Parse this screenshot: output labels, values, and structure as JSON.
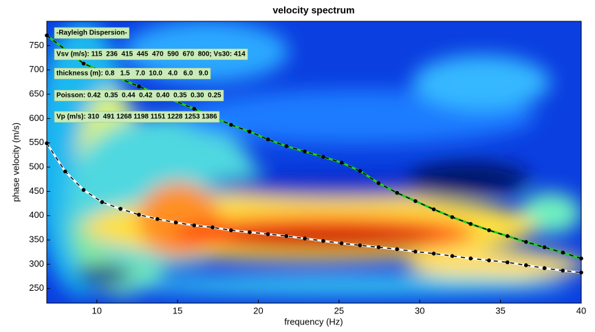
{
  "chart_data": {
    "type": "line",
    "title": "velocity spectrum",
    "xlabel": "frequency (Hz)",
    "ylabel": "phase velocity (m/s)",
    "xlim": [
      6.9,
      40
    ],
    "ylim": [
      220,
      800
    ],
    "xticks": [
      10,
      15,
      20,
      25,
      30,
      35,
      40
    ],
    "yticks": [
      250,
      300,
      350,
      400,
      450,
      500,
      550,
      600,
      650,
      700,
      750
    ],
    "grid": false,
    "dash_color": "#000000",
    "annotations": [
      "-Rayleigh Dispersion-",
      "Vsv (m/s): 115  236  415  445  470  590  670  800; Vs30: 414",
      "thickness (m): 0.8   1.5   7.0  10.0   4.0   6.0   9.0",
      "Poisson: 0.42  0.35  0.44  0.42  0.40  0.35  0.30  0.25",
      "Vp (m/s): 310  491 1268 1198 1151 1228 1253 1386"
    ],
    "series": [
      {
        "color": "#ffffff",
        "x": [
          6.9,
          8.04,
          9.18,
          10.32,
          11.47,
          12.61,
          13.75,
          14.89,
          16.03,
          17.17,
          18.31,
          19.46,
          20.6,
          21.74,
          22.88,
          24.02,
          25.16,
          26.3,
          27.45,
          28.59,
          29.73,
          30.87,
          32.01,
          33.15,
          34.29,
          35.43,
          36.58,
          37.72,
          38.86,
          40.0
        ],
        "values": [
          549,
          491,
          453,
          428,
          414,
          402,
          393,
          386,
          380,
          376,
          370,
          366,
          362,
          358,
          353,
          348,
          343,
          339,
          335,
          331,
          326,
          322,
          317,
          312,
          308,
          304,
          298,
          292,
          287,
          283
        ]
      },
      {
        "color": "#22cc22",
        "x": [
          6.9,
          9.18,
          12.61,
          16.03,
          18.31,
          19.46,
          20.6,
          21.74,
          22.88,
          24.02,
          25.16,
          26.3,
          27.45,
          28.59,
          29.73,
          30.87,
          32.01,
          33.15,
          34.29,
          35.43,
          36.58,
          37.72,
          38.86,
          40.0
        ],
        "values": [
          771,
          713,
          666,
          620,
          587,
          573,
          557,
          543,
          532,
          521,
          509,
          492,
          467,
          447,
          430,
          413,
          397,
          383,
          370,
          358,
          346,
          335,
          324,
          312
        ]
      }
    ]
  }
}
